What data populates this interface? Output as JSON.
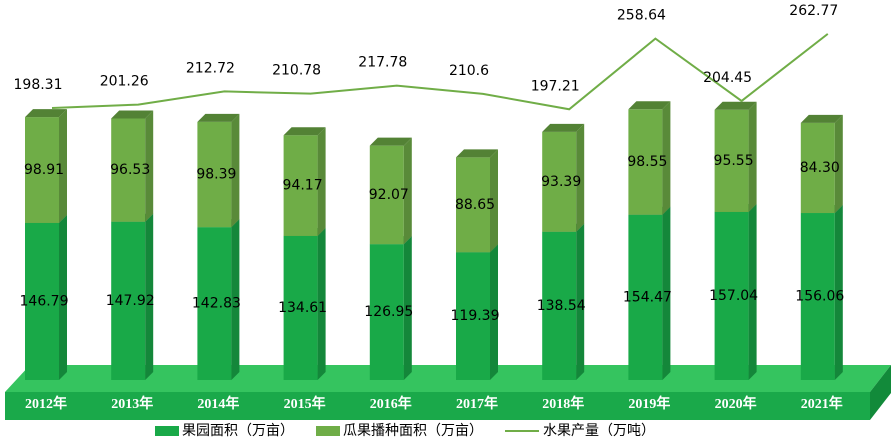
{
  "chart_data": {
    "type": "bar",
    "stacked": true,
    "categories": [
      "2012年",
      "2013年",
      "2014年",
      "2015年",
      "2016年",
      "2017年",
      "2018年",
      "2019年",
      "2020年",
      "2021年"
    ],
    "series": [
      {
        "name": "果园面积（万亩）",
        "type": "bar",
        "color": "#19a948",
        "values": [
          146.79,
          147.92,
          142.83,
          134.61,
          126.95,
          119.39,
          138.54,
          154.47,
          157.04,
          156.06
        ]
      },
      {
        "name": "瓜果播种面积（万亩）",
        "type": "bar",
        "color": "#6fad47",
        "values": [
          98.91,
          96.53,
          98.39,
          94.17,
          92.07,
          88.65,
          93.39,
          98.55,
          95.55,
          84.3
        ],
        "value_labels": [
          "98.91",
          "96.53",
          "98.39",
          "94.17",
          "92.07",
          "88.65",
          "93.39",
          "98.55",
          "95.55",
          "84.30"
        ]
      },
      {
        "name": "水果产量（万吨）",
        "type": "line",
        "color": "#70ad47",
        "values": [
          198.31,
          201.26,
          212.72,
          210.78,
          217.78,
          210.6,
          197.21,
          258.64,
          204.45,
          262.77
        ]
      }
    ]
  }
}
